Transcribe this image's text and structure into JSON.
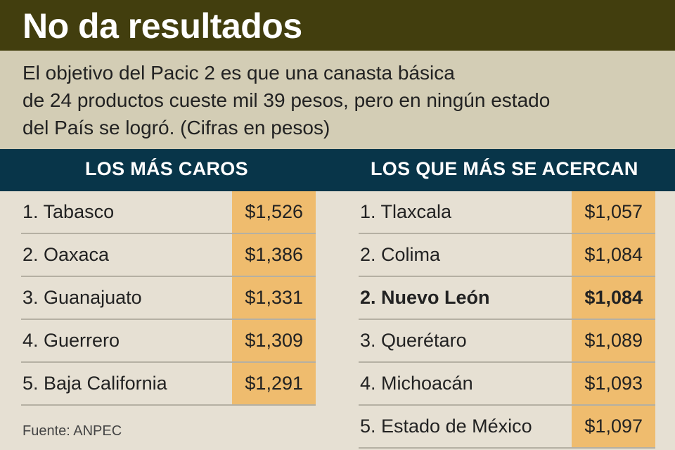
{
  "header": {
    "title": "No da resultados",
    "intro_lines": [
      "El objetivo del Pacic 2 es que una canasta básica",
      "de 24 productos cueste mil 39 pesos, pero en ningún estado",
      "del País se logró.  (Cifras en pesos)"
    ]
  },
  "colors": {
    "title_bg": "#423e0e",
    "intro_bg": "#d3cdb5",
    "header_bg": "#083549",
    "value_bg": "#efbc6e",
    "page_bg": "#e6e0d3"
  },
  "chart_data": [
    {
      "type": "table",
      "title": "LOS MÁS CAROS",
      "rows": [
        {
          "label": "1. Tabasco",
          "value": "$1,526",
          "highlight": false
        },
        {
          "label": "2. Oaxaca",
          "value": "$1,386",
          "highlight": false
        },
        {
          "label": "3. Guanajuato",
          "value": "$1,331",
          "highlight": false
        },
        {
          "label": "4. Guerrero",
          "value": "$1,309",
          "highlight": false
        },
        {
          "label": "5. Baja California",
          "value": "$1,291",
          "highlight": false
        }
      ]
    },
    {
      "type": "table",
      "title": "LOS QUE MÁS SE ACERCAN",
      "rows": [
        {
          "label": "1. Tlaxcala",
          "value": "$1,057",
          "highlight": false
        },
        {
          "label": "2. Colima",
          "value": "$1,084",
          "highlight": false
        },
        {
          "label": "2. Nuevo León",
          "value": "$1,084",
          "highlight": true
        },
        {
          "label": "3. Querétaro",
          "value": "$1,089",
          "highlight": false
        },
        {
          "label": "4. Michoacán",
          "value": "$1,093",
          "highlight": false
        },
        {
          "label": "5. Estado de México",
          "value": "$1,097",
          "highlight": false
        }
      ]
    }
  ],
  "footer": {
    "source": "Fuente: ANPEC"
  }
}
